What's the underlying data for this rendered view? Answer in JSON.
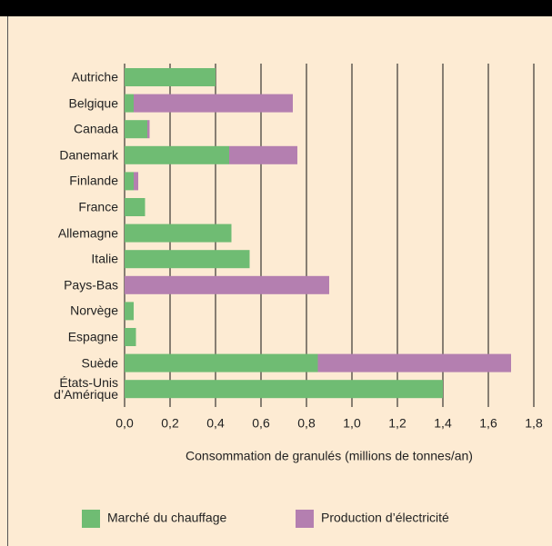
{
  "chart_data": {
    "type": "stacked-barh",
    "categories": [
      "Autriche",
      "Belgique",
      "Canada",
      "Danemark",
      "Finlande",
      "France",
      "Allemagne",
      "Italie",
      "Pays-Bas",
      "Norvège",
      "Espagne",
      "Suède",
      "États-Unis\nd’Amérique"
    ],
    "series": [
      {
        "name": "Marché du chauffage",
        "color": "#6fbc73",
        "values": [
          0.4,
          0.04,
          0.1,
          0.46,
          0.04,
          0.09,
          0.47,
          0.55,
          0,
          0.04,
          0.05,
          0.85,
          1.4
        ]
      },
      {
        "name": "Production d’électricité",
        "color": "#b47fb0",
        "values": [
          0,
          0.7,
          0.01,
          0.3,
          0.02,
          0,
          0,
          0,
          0.9,
          0,
          0,
          0.85,
          0
        ]
      }
    ],
    "xlabel": "Consommation de granulés (millions de tonnes/an)",
    "xlim": [
      0,
      1.8
    ],
    "xticks": [
      {
        "value": 0,
        "label": "0,0"
      },
      {
        "value": 0.2,
        "label": "0,2"
      },
      {
        "value": 0.4,
        "label": "0,4"
      },
      {
        "value": 0.6,
        "label": "0,6"
      },
      {
        "value": 0.8,
        "label": "0,8"
      },
      {
        "value": 1.0,
        "label": "1,0"
      },
      {
        "value": 1.2,
        "label": "1,2"
      },
      {
        "value": 1.4,
        "label": "1,4"
      },
      {
        "value": 1.6,
        "label": "1,6"
      },
      {
        "value": 1.8,
        "label": "1,8"
      }
    ],
    "grid": true
  }
}
